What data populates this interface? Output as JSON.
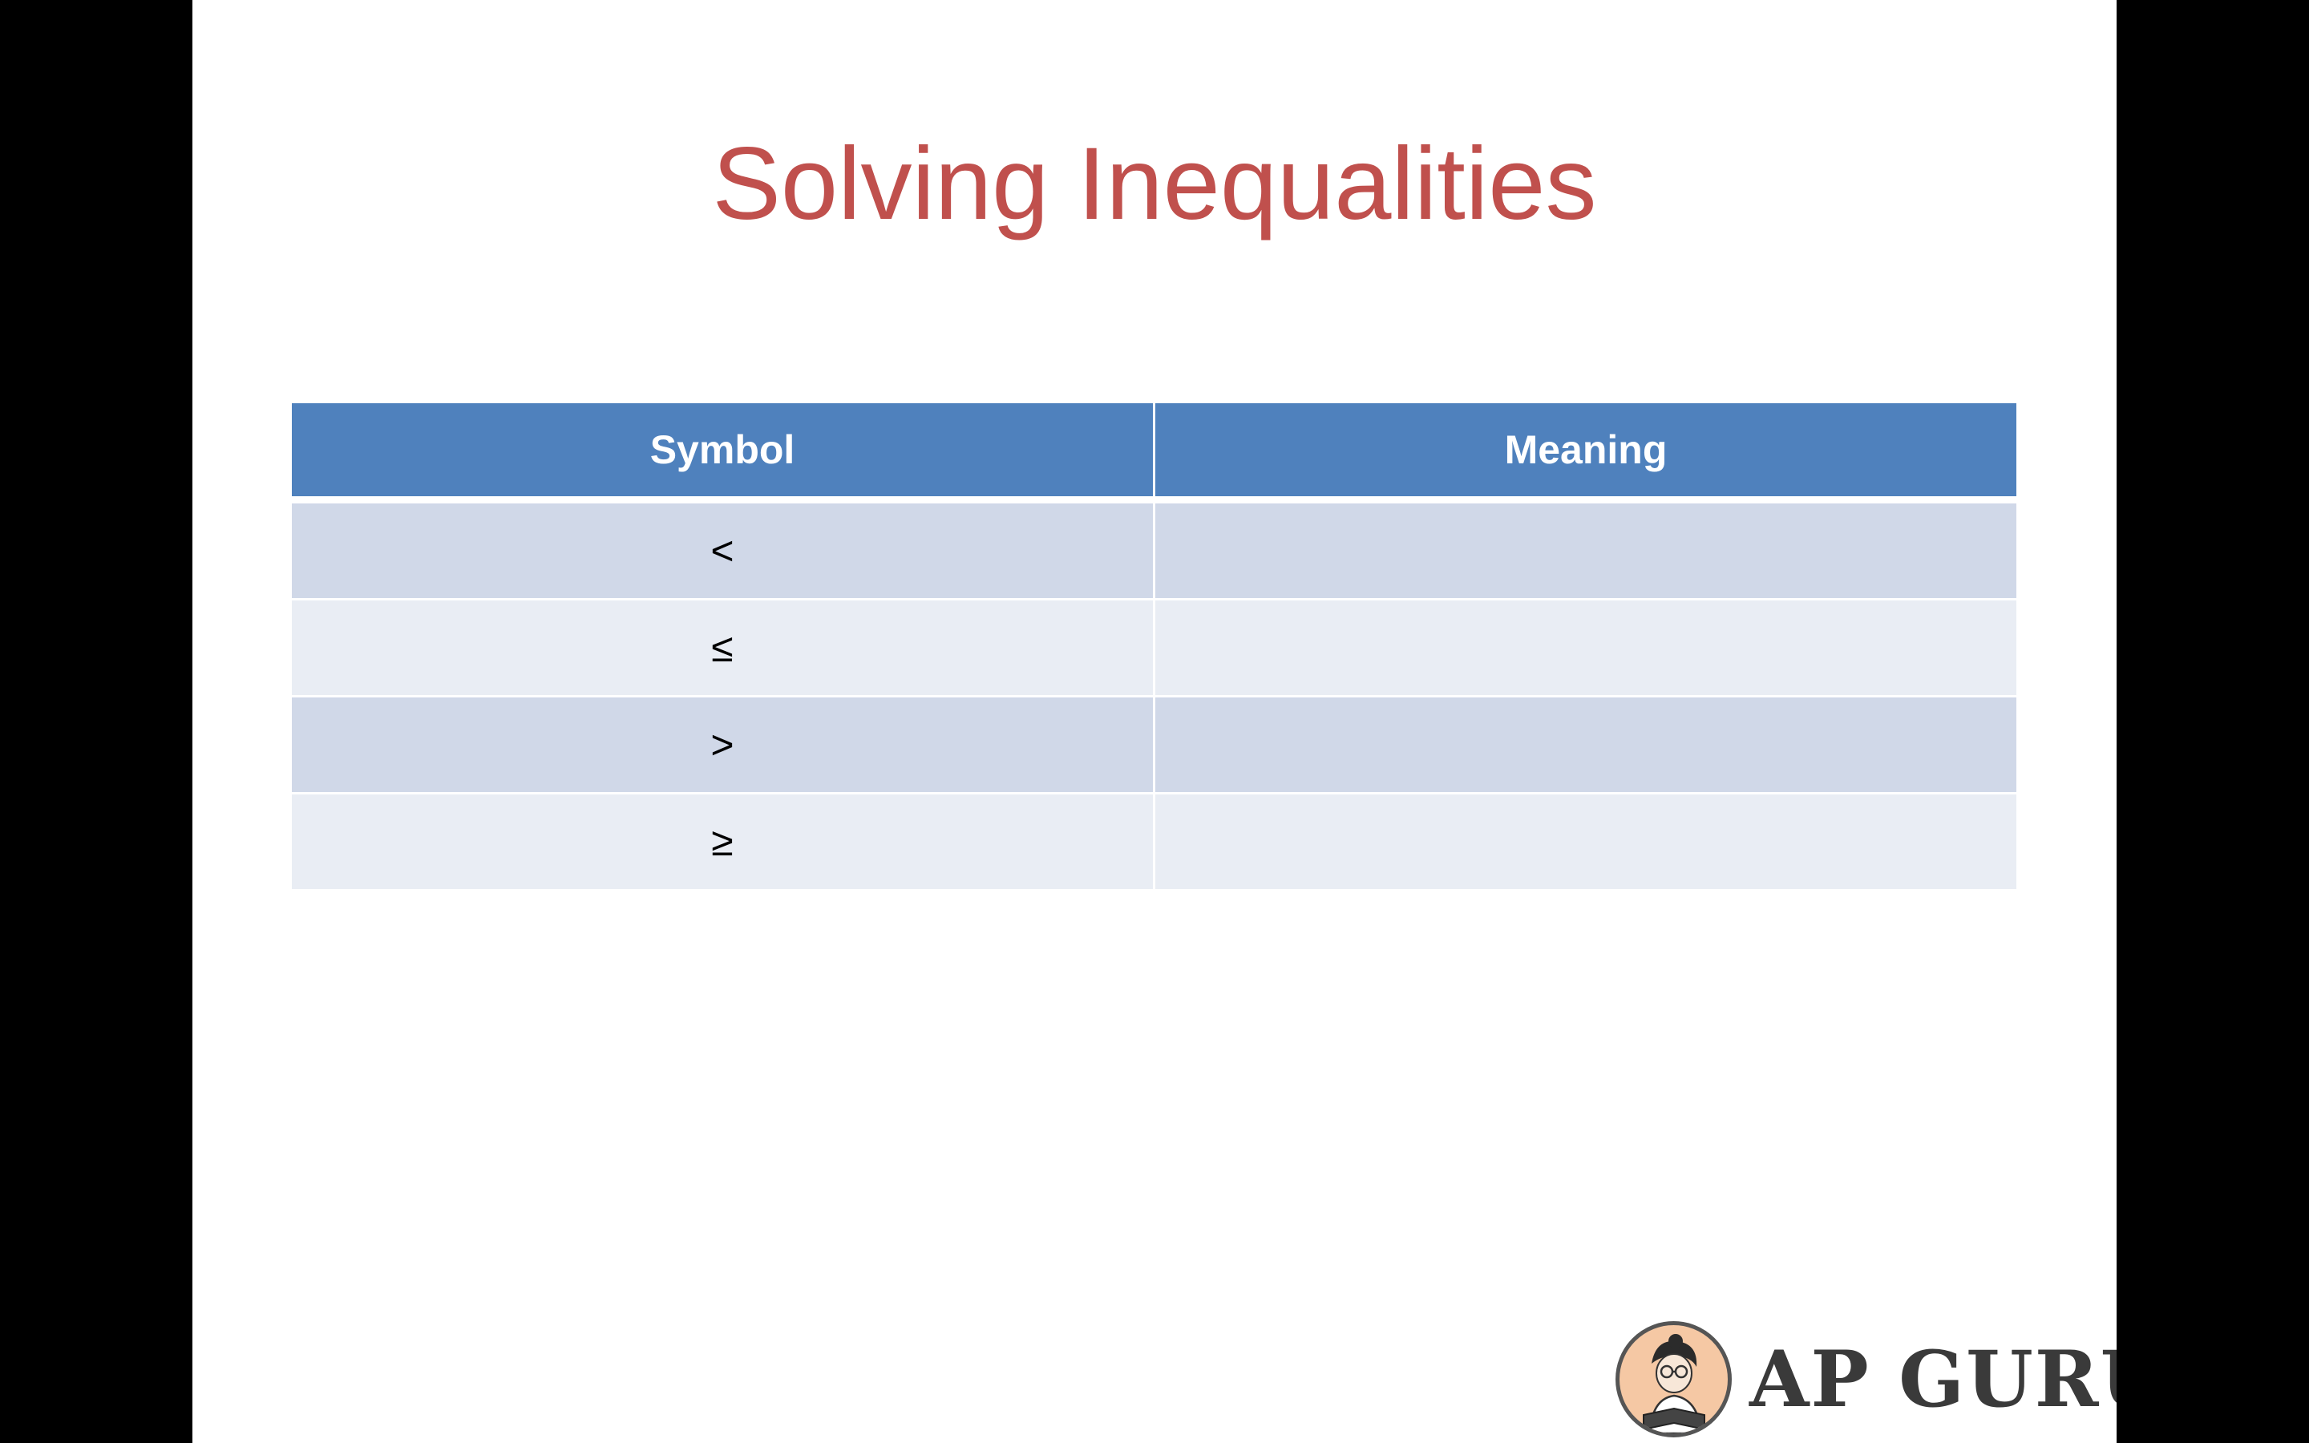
{
  "slide": {
    "title": "Solving Inequalities"
  },
  "table": {
    "headers": [
      "Symbol",
      "Meaning"
    ],
    "rows": [
      {
        "symbol": "<",
        "meaning": ""
      },
      {
        "symbol": "≤",
        "meaning": ""
      },
      {
        "symbol": ">",
        "meaning": ""
      },
      {
        "symbol": "≥",
        "meaning": ""
      }
    ]
  },
  "logo": {
    "text": "AP GURU",
    "icon": "reader-mascot-icon"
  },
  "colors": {
    "title": "#C0504D",
    "header_bg": "#4F81BD",
    "row_band_1": "#D0D8E8",
    "row_band_2": "#E9EDF4",
    "letterbox": "#000000"
  }
}
